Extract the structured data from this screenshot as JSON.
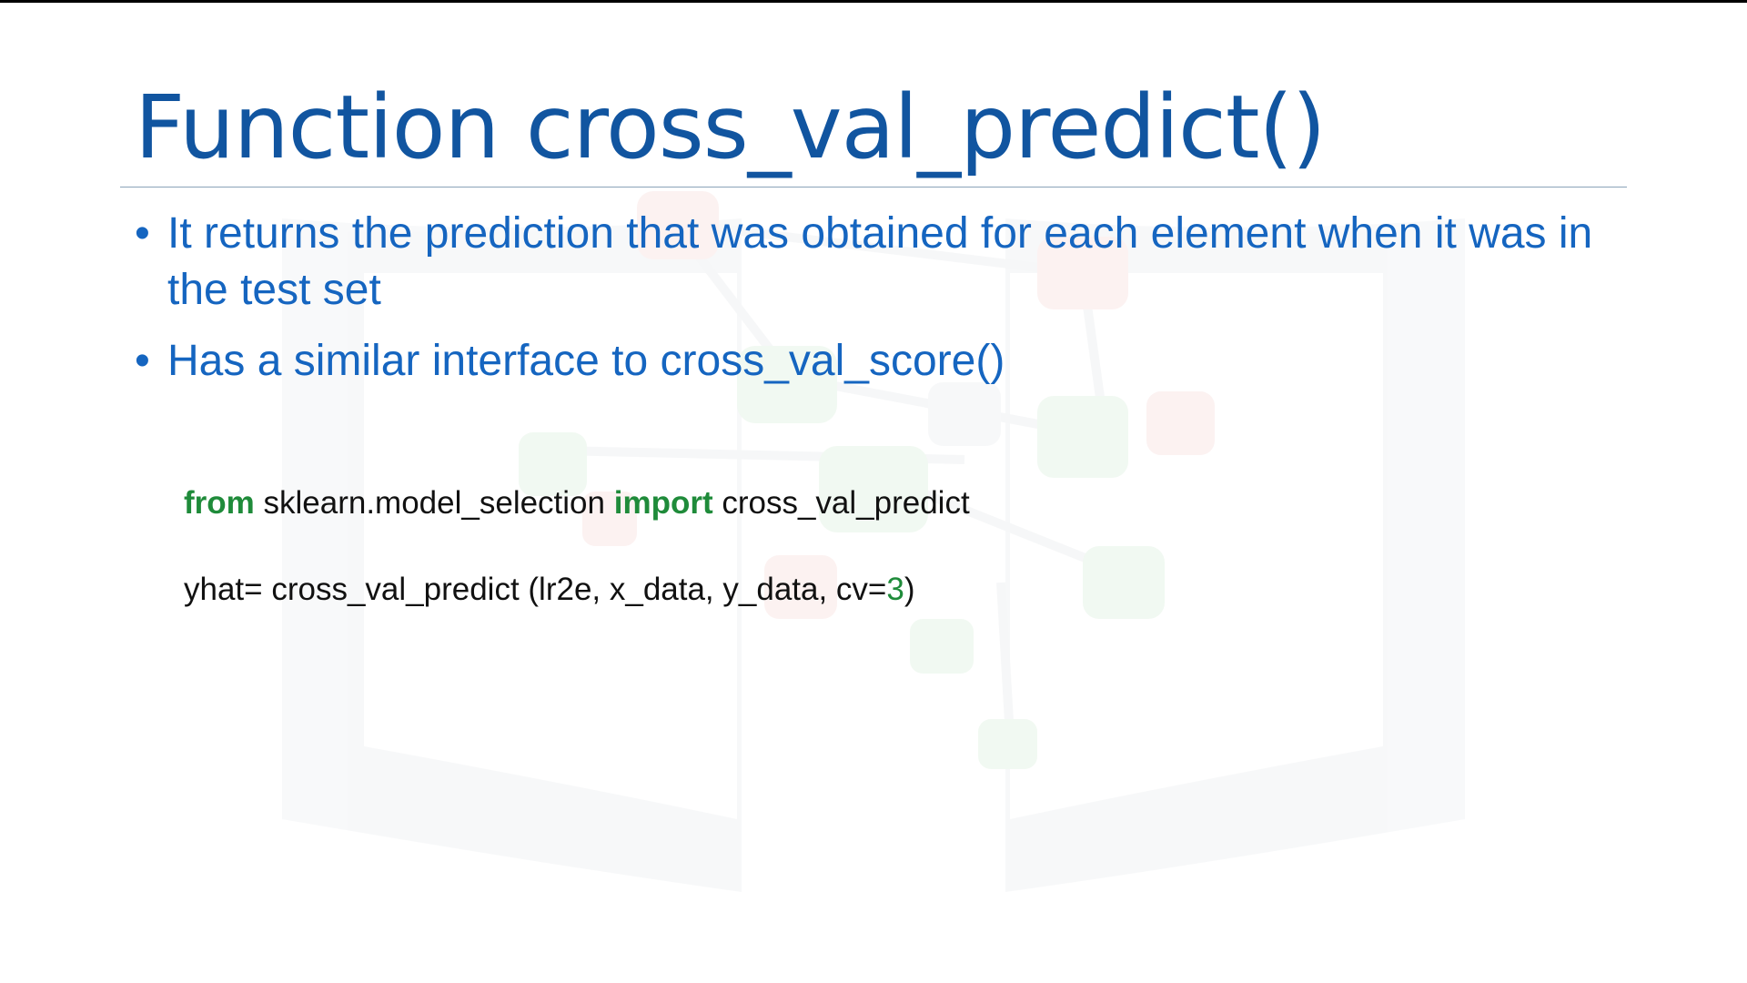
{
  "slide": {
    "title": "Function cross_val_predict()",
    "bullet_glyph": "•",
    "bullets": [
      {
        "text": "It returns the prediction that was obtained for each element when it was in the test set"
      },
      {
        "text": "Has a similar interface to cross_val_score()"
      }
    ],
    "code": {
      "line1": {
        "kw_from": "from",
        "module": " sklearn.model_selection ",
        "kw_import": "import",
        "name": " cross_val_predict"
      },
      "line2": {
        "prefix": "yhat= cross_val_predict (lr2e, x_data, y_data, cv=",
        "number": "3",
        "suffix": ")"
      }
    },
    "colors": {
      "title": "#1155a0",
      "bullet_text": "#1565c0",
      "keyword": "#1f8b3a",
      "code_text": "#111111"
    },
    "watermark": "book-network-icon"
  }
}
